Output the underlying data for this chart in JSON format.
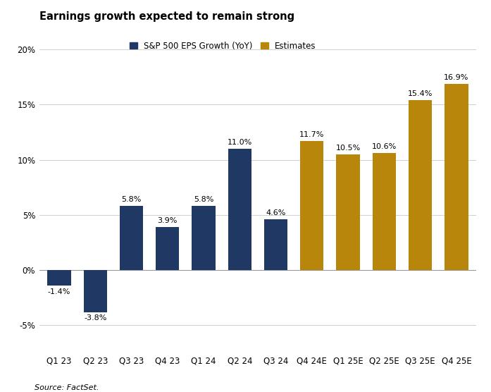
{
  "title": "Earnings growth expected to remain strong",
  "categories": [
    "Q1 23",
    "Q2 23",
    "Q3 23",
    "Q4 23",
    "Q1 24",
    "Q2 24",
    "Q3 24",
    "Q4 24E",
    "Q1 25E",
    "Q2 25E",
    "Q3 25E",
    "Q4 25E"
  ],
  "values": [
    -1.4,
    -3.8,
    5.8,
    3.9,
    5.8,
    11.0,
    4.6,
    11.7,
    10.5,
    10.6,
    15.4,
    16.9
  ],
  "colors": [
    "#1f3864",
    "#1f3864",
    "#1f3864",
    "#1f3864",
    "#1f3864",
    "#1f3864",
    "#1f3864",
    "#b8860b",
    "#b8860b",
    "#b8860b",
    "#b8860b",
    "#b8860b"
  ],
  "actual_color": "#1f3864",
  "estimate_color": "#b8860b",
  "legend_actual": "S&P 500 EPS Growth (YoY)",
  "legend_estimate": "Estimates",
  "ylabel_ticks": [
    "-5%",
    "0%",
    "5%",
    "10%",
    "15%",
    "20%"
  ],
  "yticks": [
    -5,
    0,
    5,
    10,
    15,
    20
  ],
  "ylim": [
    -7.5,
    22
  ],
  "source": "Source: FactSet.",
  "title_fontsize": 10.5,
  "label_fontsize": 8,
  "tick_fontsize": 8.5,
  "legend_fontsize": 8.5,
  "background_color": "#ffffff"
}
